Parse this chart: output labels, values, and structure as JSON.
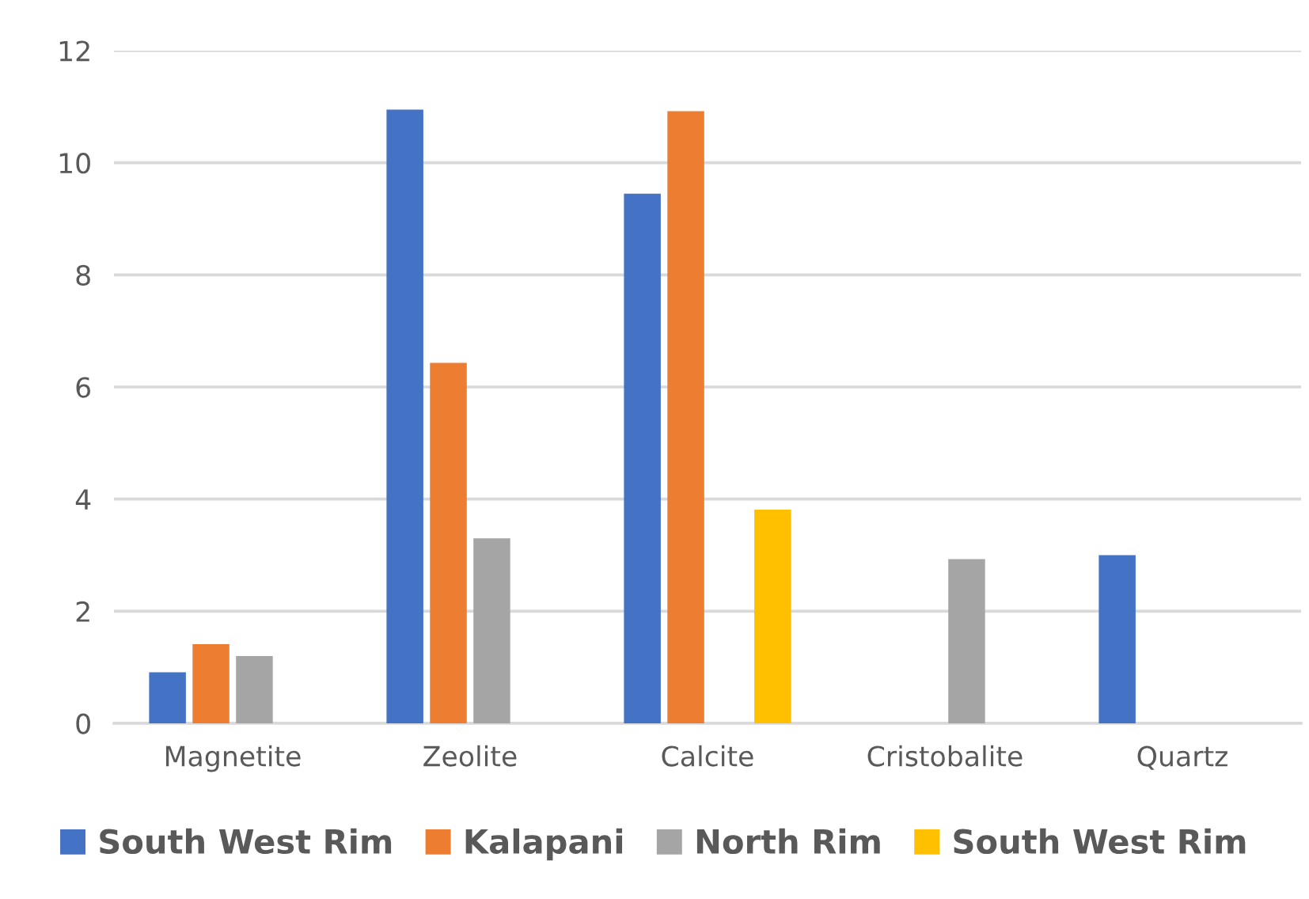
{
  "chart_data": {
    "type": "bar",
    "categories": [
      "Magnetite",
      "Zeolite",
      "Calcite",
      "Cristobalite",
      "Quartz"
    ],
    "series": [
      {
        "name": "South West Rim",
        "color": "#4472c4",
        "values": [
          0.91,
          10.95,
          9.45,
          null,
          3.0
        ]
      },
      {
        "name": "Kalapani",
        "color": "#ed7d31",
        "values": [
          1.41,
          6.43,
          10.92,
          null,
          null
        ]
      },
      {
        "name": "North Rim",
        "color": "#a5a5a5",
        "values": [
          1.2,
          3.3,
          null,
          2.93,
          null
        ]
      },
      {
        "name": "South West Rim",
        "color": "#ffc000",
        "values": [
          null,
          null,
          3.81,
          null,
          null
        ]
      }
    ],
    "ylim": [
      0,
      12
    ],
    "yticks": [
      0,
      2,
      4,
      6,
      8,
      10,
      12
    ],
    "grid": "y",
    "legend": "bottom"
  }
}
